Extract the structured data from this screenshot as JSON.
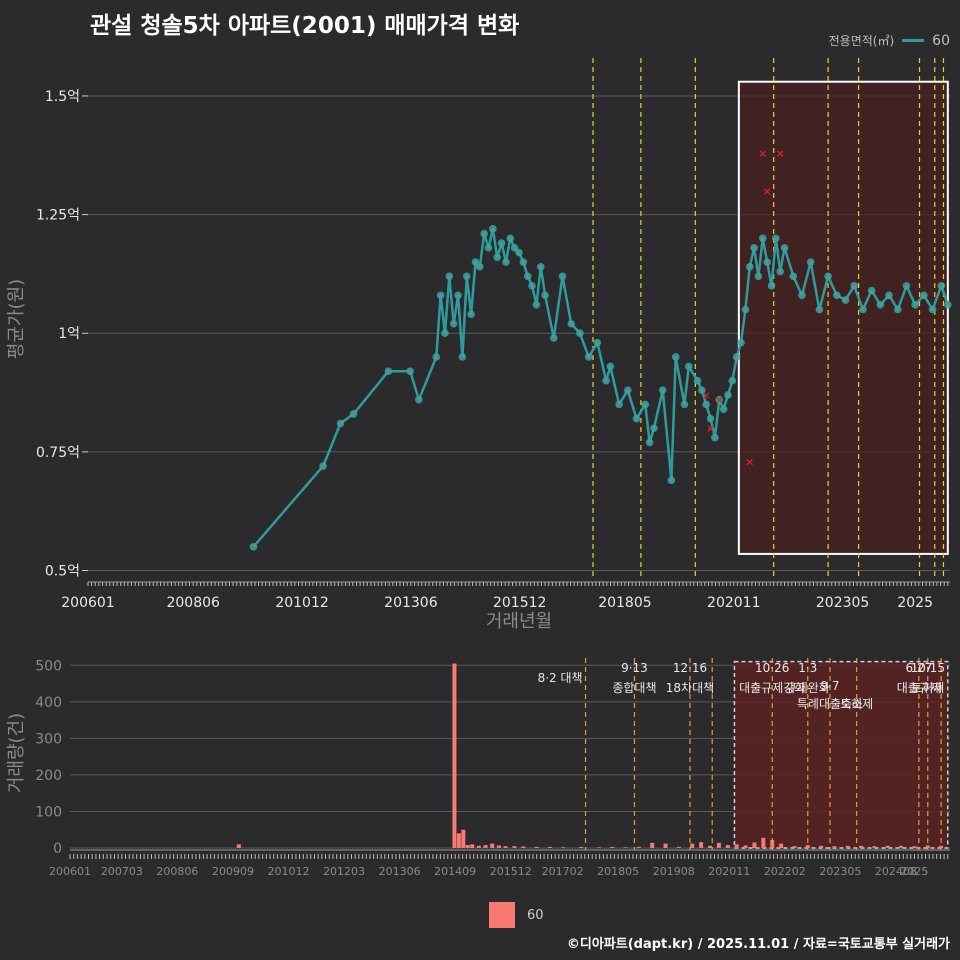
{
  "title": "관설 청솔5차 아파트(2001) 매매가격 변화",
  "legend": {
    "title": "전용면적(㎡)",
    "series_label": "60",
    "bar_label": "60"
  },
  "footer": "©디아파트(dapt.kr) / 2025.11.01 / 자료=국토교통부 실거래가",
  "colors": {
    "line": "#2e9c9c",
    "point": "#3fa3a0",
    "cancel": "#e02020",
    "bar": "#f87a72",
    "event_line": "#f0d020",
    "event_line_bottom": "#e0a030",
    "highlight_fill": "#4a2020",
    "highlight_stroke": "#ffffff"
  },
  "chart_data": [
    {
      "type": "line",
      "title": "관설 청솔5차 아파트(2001) 매매가격 변화",
      "xlabel": "거래년월",
      "ylabel": "평균가(원)",
      "xlim": [
        2006.0,
        2025.8
      ],
      "ylim": [
        0.48,
        1.58
      ],
      "x_ticks": [
        "200601",
        "200806",
        "201012",
        "201306",
        "201512",
        "201805",
        "202011",
        "202305",
        "2025"
      ],
      "y_ticks": [
        {
          "value": 0.5,
          "label": "0.5억"
        },
        {
          "value": 0.75,
          "label": "0.75억"
        },
        {
          "value": 1.0,
          "label": "1억"
        },
        {
          "value": 1.25,
          "label": "1.25억"
        },
        {
          "value": 1.5,
          "label": "1.5억"
        }
      ],
      "series": [
        {
          "name": "60",
          "x": [
            2009.8,
            2011.4,
            2011.8,
            2012.1,
            2012.9,
            2013.4,
            2013.6,
            2014.0,
            2014.1,
            2014.2,
            2014.3,
            2014.4,
            2014.5,
            2014.6,
            2014.7,
            2014.8,
            2014.9,
            2015.0,
            2015.1,
            2015.2,
            2015.3,
            2015.4,
            2015.5,
            2015.6,
            2015.7,
            2015.8,
            2015.9,
            2016.0,
            2016.1,
            2016.2,
            2016.3,
            2016.4,
            2016.5,
            2016.7,
            2016.9,
            2017.1,
            2017.3,
            2017.5,
            2017.7,
            2017.9,
            2018.0,
            2018.2,
            2018.4,
            2018.6,
            2018.8,
            2018.9,
            2019.0,
            2019.2,
            2019.4,
            2019.5,
            2019.7,
            2019.8,
            2020.0,
            2020.1,
            2020.2,
            2020.3,
            2020.4,
            2020.5,
            2020.6,
            2020.7,
            2020.8,
            2020.9,
            2021.0,
            2021.1,
            2021.2,
            2021.3,
            2021.4,
            2021.5,
            2021.6,
            2021.7,
            2021.8,
            2021.9,
            2022.0,
            2022.2,
            2022.4,
            2022.6,
            2022.8,
            2023.0,
            2023.2,
            2023.4,
            2023.6,
            2023.8,
            2024.0,
            2024.2,
            2024.4,
            2024.6,
            2024.8,
            2025.0,
            2025.2,
            2025.4,
            2025.6,
            2025.75
          ],
          "values": [
            0.55,
            0.72,
            0.81,
            0.83,
            0.92,
            0.92,
            0.86,
            0.95,
            1.08,
            1.0,
            1.12,
            1.02,
            1.08,
            0.95,
            1.12,
            1.04,
            1.15,
            1.14,
            1.21,
            1.18,
            1.22,
            1.16,
            1.19,
            1.15,
            1.2,
            1.18,
            1.17,
            1.15,
            1.12,
            1.1,
            1.06,
            1.14,
            1.08,
            0.99,
            1.12,
            1.02,
            1.0,
            0.95,
            0.98,
            0.9,
            0.93,
            0.85,
            0.88,
            0.82,
            0.85,
            0.77,
            0.8,
            0.88,
            0.69,
            0.95,
            0.85,
            0.93,
            0.9,
            0.88,
            0.85,
            0.82,
            0.78,
            0.86,
            0.84,
            0.87,
            0.9,
            0.95,
            0.98,
            1.05,
            1.14,
            1.18,
            1.12,
            1.2,
            1.15,
            1.1,
            1.2,
            1.13,
            1.18,
            1.12,
            1.08,
            1.15,
            1.05,
            1.12,
            1.08,
            1.07,
            1.1,
            1.05,
            1.09,
            1.06,
            1.08,
            1.05,
            1.1,
            1.06,
            1.08,
            1.05,
            1.1,
            1.06
          ]
        }
      ],
      "cancelled_trades": {
        "x": [
          2020.2,
          2020.3,
          2020.5,
          2021.2,
          2021.5,
          2021.6,
          2021.9
        ],
        "values": [
          0.87,
          0.8,
          0.86,
          0.73,
          1.38,
          1.3,
          1.38
        ]
      },
      "event_dates": [
        2017.6,
        2018.7,
        2019.95,
        2021.75,
        2023.0,
        2023.7,
        2025.1,
        2025.45,
        2025.65
      ],
      "highlight_range": {
        "x": [
          2020.95,
          2025.75
        ],
        "y": [
          0.535,
          1.53
        ]
      }
    },
    {
      "type": "bar",
      "xlabel": "",
      "ylabel": "거래량(건)",
      "xlim": [
        2006.0,
        2025.8
      ],
      "ylim": [
        0,
        520
      ],
      "y_ticks": [
        0,
        100,
        200,
        300,
        400,
        500
      ],
      "x_ticks": [
        "200601",
        "200703",
        "200806",
        "200909",
        "201012",
        "201203",
        "201306",
        "201409",
        "201512",
        "201702",
        "201805",
        "201908",
        "202011",
        "202202",
        "202305",
        "202408",
        "2025"
      ],
      "bars": {
        "x": [
          2009.8,
          2014.65,
          2014.75,
          2014.85,
          2014.95,
          2015.05,
          2015.2,
          2015.35,
          2015.5,
          2015.65,
          2015.8,
          2016.0,
          2016.2,
          2016.5,
          2016.8,
          2017.1,
          2017.5,
          2017.9,
          2018.2,
          2018.5,
          2018.8,
          2019.1,
          2019.4,
          2019.7,
          2020.0,
          2020.2,
          2020.4,
          2020.6,
          2020.8,
          2021.0,
          2021.2,
          2021.4,
          2021.6,
          2021.8,
          2022.0,
          2022.3,
          2022.6,
          2022.9,
          2023.2,
          2023.5,
          2023.8,
          2024.1,
          2024.4,
          2024.7,
          2025.0,
          2025.3,
          2025.6
        ],
        "values": [
          10,
          505,
          40,
          50,
          8,
          10,
          6,
          8,
          12,
          7,
          5,
          5,
          4,
          3,
          3,
          2,
          3,
          2,
          3,
          2,
          3,
          14,
          12,
          3,
          12,
          16,
          6,
          14,
          8,
          10,
          7,
          15,
          28,
          22,
          12,
          5,
          8,
          6,
          5,
          6,
          6,
          5,
          6,
          6,
          5,
          7,
          6
        ]
      },
      "events": [
        {
          "x": 2017.6,
          "date": "8·2",
          "label": "대책"
        },
        {
          "x": 2018.7,
          "date": "9·13",
          "label": "종합대책"
        },
        {
          "x": 2019.95,
          "date": "12·16",
          "label": "18차대책"
        },
        {
          "x": 2020.45,
          "date": "",
          "label": ""
        },
        {
          "x": 2021.8,
          "date": "10·26",
          "label": "대출규제강화"
        },
        {
          "x": 2022.6,
          "date": "1·3",
          "label": "규제완화"
        },
        {
          "x": 2023.1,
          "date": "9·7",
          "label": "특례대출축소"
        },
        {
          "x": 2023.7,
          "date": "",
          "label": "토허제"
        },
        {
          "x": 2025.1,
          "date": "6·27",
          "label": "대출규제"
        },
        {
          "x": 2025.3,
          "date": "10·15",
          "label": "토허제"
        },
        {
          "x": 2025.6,
          "date": "",
          "label": ""
        }
      ],
      "highlight_range": {
        "x": [
          2020.95,
          2025.75
        ],
        "y": [
          0,
          510
        ]
      }
    }
  ]
}
